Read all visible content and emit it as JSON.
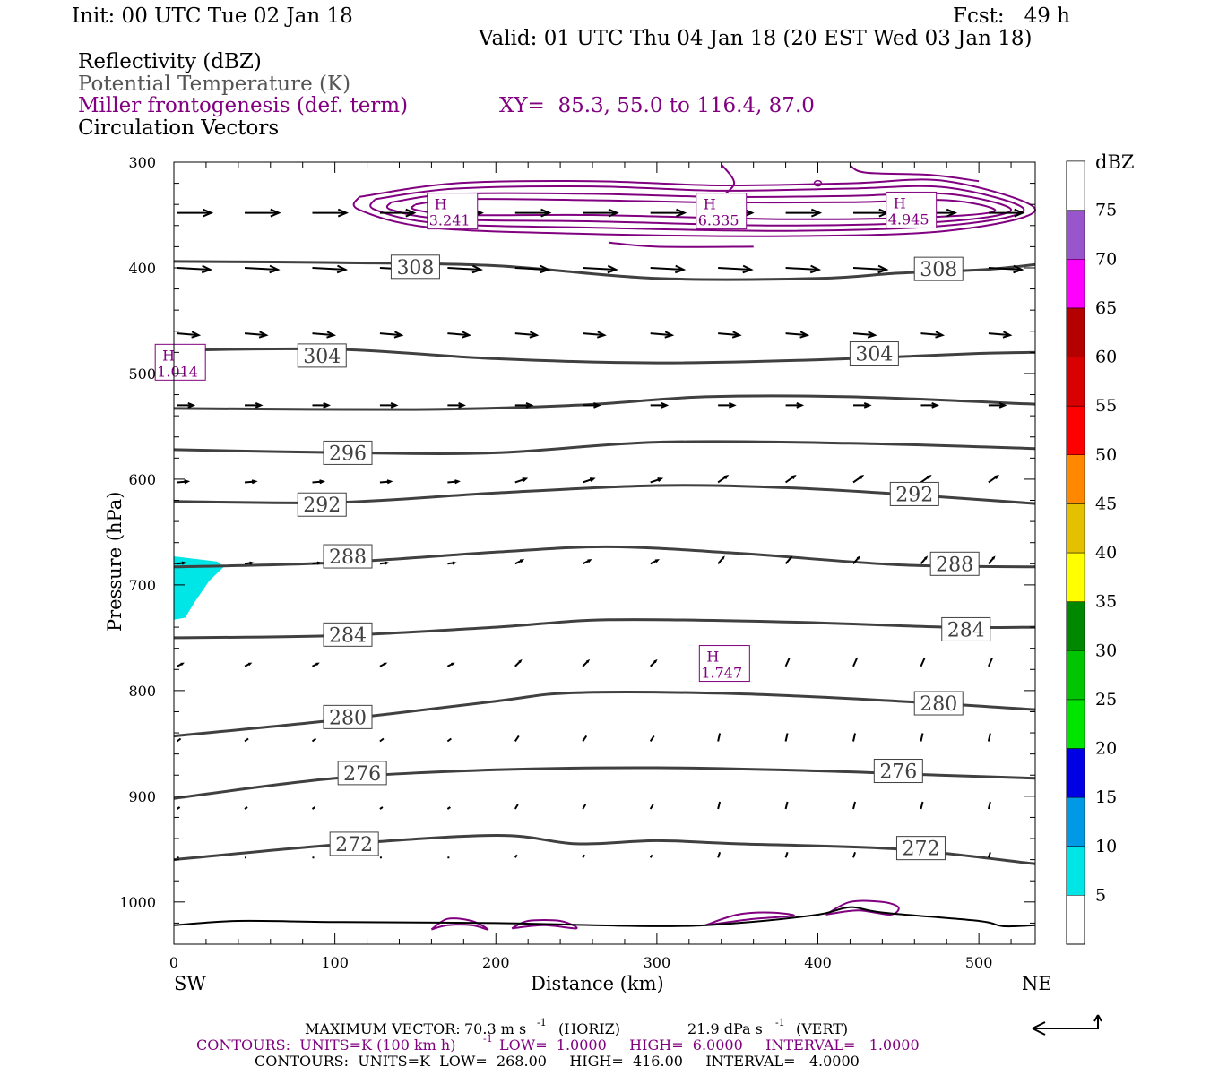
{
  "header": {
    "init": "Init: 00 UTC Tue 02 Jan 18",
    "fcst": "Fcst:   49 h",
    "valid": "Valid: 01 UTC Thu 04 Jan 18 (20 EST Wed 03 Jan 18)"
  },
  "fields": {
    "f1": "Reflectivity (dBZ)",
    "f2": "Potential Temperature (K)",
    "f3": "Miller frontogenesis (def. term)",
    "xy": "XY=  85.3, 55.0 to 116.4, 87.0",
    "f4": "Circulation Vectors"
  },
  "colors": {
    "theta": "#404040",
    "fronto": "#800080",
    "vectors": "#000000",
    "refl_5": "#00e5e5"
  },
  "chart_data": {
    "type": "cross-section",
    "xlabel": "Distance (km)",
    "ylabel": "Pressure (hPa)",
    "xlim": [
      0,
      535
    ],
    "ylim": [
      1040,
      300
    ],
    "x_ticks": [
      0,
      100,
      200,
      300,
      400,
      500
    ],
    "y_ticks": [
      300,
      400,
      500,
      600,
      700,
      800,
      900,
      1000
    ],
    "left_end": "SW",
    "right_end": "NE",
    "theta_contours": [
      {
        "label": "308",
        "points": [
          [
            0,
            394
          ],
          [
            100,
            395
          ],
          [
            200,
            398
          ],
          [
            300,
            410
          ],
          [
            400,
            410
          ],
          [
            450,
            405
          ],
          [
            500,
            402
          ],
          [
            535,
            397
          ]
        ],
        "label_pos": [
          [
            150,
            399
          ],
          [
            475,
            401
          ]
        ]
      },
      {
        "label": "304",
        "points": [
          [
            0,
            478
          ],
          [
            100,
            477
          ],
          [
            200,
            486
          ],
          [
            300,
            490
          ],
          [
            400,
            487
          ],
          [
            500,
            481
          ],
          [
            535,
            480
          ]
        ],
        "label_pos": [
          [
            92,
            483
          ],
          [
            435,
            481
          ]
        ]
      },
      {
        "label": "",
        "points": [
          [
            0,
            533
          ],
          [
            150,
            534
          ],
          [
            250,
            530
          ],
          [
            330,
            522
          ],
          [
            420,
            522
          ],
          [
            535,
            529
          ]
        ]
      },
      {
        "label": "296",
        "points": [
          [
            0,
            572
          ],
          [
            110,
            575
          ],
          [
            200,
            575
          ],
          [
            300,
            565
          ],
          [
            420,
            566
          ],
          [
            535,
            571
          ]
        ],
        "label_pos": [
          [
            108,
            575
          ]
        ]
      },
      {
        "label": "292",
        "points": [
          [
            0,
            621
          ],
          [
            100,
            622
          ],
          [
            200,
            613
          ],
          [
            300,
            606
          ],
          [
            380,
            608
          ],
          [
            450,
            614
          ],
          [
            535,
            623
          ]
        ],
        "label_pos": [
          [
            92,
            624
          ],
          [
            460,
            614
          ]
        ]
      },
      {
        "label": "288",
        "points": [
          [
            0,
            683
          ],
          [
            100,
            679
          ],
          [
            200,
            669
          ],
          [
            270,
            664
          ],
          [
            350,
            670
          ],
          [
            450,
            681
          ],
          [
            535,
            683
          ]
        ],
        "label_pos": [
          [
            108,
            673
          ],
          [
            485,
            680
          ]
        ]
      },
      {
        "label": "284",
        "points": [
          [
            0,
            750
          ],
          [
            100,
            748
          ],
          [
            200,
            740
          ],
          [
            270,
            733
          ],
          [
            380,
            735
          ],
          [
            480,
            740
          ],
          [
            535,
            740
          ]
        ],
        "label_pos": [
          [
            108,
            747
          ],
          [
            492,
            742
          ]
        ]
      },
      {
        "label": "280",
        "points": [
          [
            0,
            843
          ],
          [
            100,
            828
          ],
          [
            200,
            810
          ],
          [
            250,
            802
          ],
          [
            350,
            803
          ],
          [
            450,
            810
          ],
          [
            535,
            818
          ]
        ],
        "label_pos": [
          [
            108,
            825
          ],
          [
            475,
            812
          ]
        ]
      },
      {
        "label": "276",
        "points": [
          [
            0,
            902
          ],
          [
            100,
            883
          ],
          [
            200,
            875
          ],
          [
            300,
            873
          ],
          [
            400,
            876
          ],
          [
            475,
            880
          ],
          [
            535,
            883
          ]
        ],
        "label_pos": [
          [
            117,
            878
          ],
          [
            450,
            876
          ]
        ]
      },
      {
        "label": "272",
        "points": [
          [
            0,
            960
          ],
          [
            100,
            946
          ],
          [
            200,
            937
          ],
          [
            250,
            945
          ],
          [
            300,
            942
          ],
          [
            350,
            945
          ],
          [
            450,
            950
          ],
          [
            535,
            964
          ]
        ],
        "label_pos": [
          [
            112,
            945
          ],
          [
            464,
            949
          ]
        ]
      }
    ],
    "theta_stats": {
      "units": "K",
      "low": "268.00",
      "high": "416.00",
      "interval": "4.0000"
    },
    "frontogenesis_highs": [
      {
        "label": "H",
        "value": "3.241",
        "x": 173,
        "p": 348
      },
      {
        "label": "H",
        "value": "6.335",
        "x": 340,
        "p": 348
      },
      {
        "label": "H",
        "value": "4.945",
        "x": 458,
        "p": 347
      },
      {
        "label": "H",
        "value": "1.747",
        "x": 342,
        "p": 776
      },
      {
        "label": "H",
        "value": "1.014",
        "x": 4,
        "p": 491
      }
    ],
    "reflectivity": {
      "units": "dBZ",
      "legend_levels": [
        5,
        10,
        15,
        20,
        25,
        30,
        35,
        40,
        45,
        50,
        55,
        60,
        65,
        70,
        75
      ],
      "legend_colors": [
        "#00e5e5",
        "#0099e5",
        "#0000e5",
        "#00e500",
        "#00c500",
        "#008800",
        "#ffff00",
        "#e5c000",
        "#ff8800",
        "#ff0000",
        "#d80000",
        "#b50000",
        "#ff00ff",
        "#9955cc",
        "#ffffff"
      ],
      "echo_max_dbz": 5,
      "echo_region": [
        [
          0,
          673
        ],
        [
          27,
          678
        ],
        [
          31,
          683
        ],
        [
          22,
          696
        ],
        [
          13,
          716
        ],
        [
          7,
          731
        ],
        [
          0,
          733
        ]
      ]
    },
    "max_vector": {
      "horiz": "70.3",
      "horiz_units": "m s",
      "vert": "21.9",
      "vert_units": "dPa s"
    }
  },
  "footer": {
    "max_vector_label": "MAXIMUM VECTOR:",
    "max_vector_horiz": "70.3 m s",
    "horiz_tag": "(HORIZ)",
    "max_vector_vert": "21.9 dPa s",
    "vert_tag": "(VERT)",
    "exp": "-1",
    "contours1": "CONTOURS:  UNITS=K (100 km h)",
    "contours1b": "LOW=  1.0000     HIGH=  6.0000     INTERVAL=   1.0000",
    "contours2": "CONTOURS:  UNITS=K  LOW=  268.00     HIGH=  416.00     INTERVAL=   4.0000"
  }
}
